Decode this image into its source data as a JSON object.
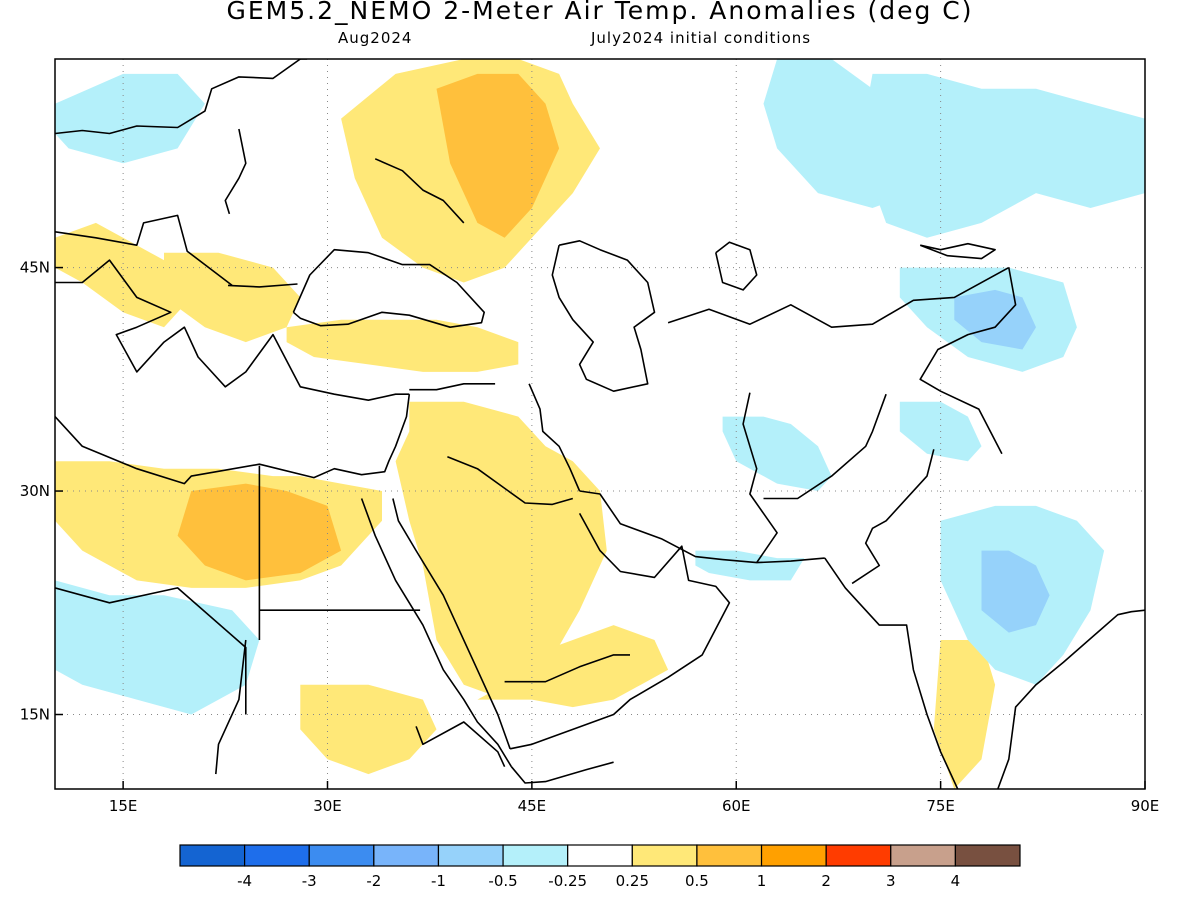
{
  "title": "GEM5.2_NEMO 2-Meter Air Temp. Anomalies (deg C)",
  "subtitle_left": "Aug2024",
  "subtitle_right": "July2024 initial conditions",
  "map": {
    "lon_range": [
      10,
      90
    ],
    "lat_range": [
      10,
      59
    ],
    "lat_ticks": [
      {
        "value": 45,
        "label": "45N"
      },
      {
        "value": 30,
        "label": "30N"
      },
      {
        "value": 15,
        "label": "15N"
      }
    ],
    "lon_ticks": [
      {
        "value": 15,
        "label": "15E"
      },
      {
        "value": 30,
        "label": "30E"
      },
      {
        "value": 45,
        "label": "45E"
      },
      {
        "value": 60,
        "label": "60E"
      },
      {
        "value": 75,
        "label": "75E"
      },
      {
        "value": 90,
        "label": "90E"
      }
    ]
  },
  "colorbar": {
    "colors": [
      "#1464d2",
      "#1e6eeb",
      "#3c8cf0",
      "#78b4fa",
      "#96d2fa",
      "#b4f0fa",
      "#ffffff",
      "#ffe878",
      "#ffc03c",
      "#ffa000",
      "#ff3c00",
      "#c8a08c",
      "#785040"
    ],
    "labels": [
      "-4",
      "-3",
      "-2",
      "-1",
      "-0.5",
      "-0.25",
      "0.25",
      "0.5",
      "1",
      "2",
      "3",
      "4"
    ]
  },
  "anomaly_regions": [
    {
      "category": 7,
      "lon": [
        10,
        13,
        15,
        17,
        19,
        20,
        18,
        15,
        12,
        10
      ],
      "lat": [
        47,
        48,
        47,
        46,
        45,
        43,
        41,
        42,
        44,
        45
      ]
    },
    {
      "category": 7,
      "lon": [
        18,
        22,
        26,
        28,
        27,
        24,
        21,
        18
      ],
      "lat": [
        46,
        46,
        45,
        43,
        41,
        40,
        41,
        43
      ]
    },
    {
      "category": 7,
      "lon": [
        31,
        35,
        40,
        44,
        47,
        48,
        50,
        48,
        45,
        43,
        40,
        37,
        34,
        32
      ],
      "lat": [
        55,
        58,
        59,
        59,
        58,
        56,
        53,
        50,
        47,
        45,
        44,
        45,
        47,
        51
      ]
    },
    {
      "category": 8,
      "lon": [
        38,
        41,
        44,
        46,
        47,
        45,
        43,
        41,
        39
      ],
      "lat": [
        57,
        58,
        58,
        56,
        53,
        49,
        47,
        48,
        52
      ]
    },
    {
      "category": 7,
      "lon": [
        27,
        31,
        35,
        38,
        41,
        44,
        44,
        41,
        37,
        33,
        29,
        27
      ],
      "lat": [
        41,
        41.5,
        41.5,
        41.5,
        41,
        40,
        38.5,
        38,
        38,
        38.5,
        39,
        40
      ]
    },
    {
      "category": 7,
      "lon": [
        36,
        40,
        44,
        46,
        48,
        50,
        50.5,
        48.5,
        46,
        43,
        40,
        38,
        37,
        36,
        35,
        36
      ],
      "lat": [
        36,
        36,
        35,
        33,
        32,
        30,
        26,
        22,
        18,
        16,
        17,
        20,
        25,
        28,
        32,
        34
      ]
    },
    {
      "category": 7,
      "lon": [
        41,
        45,
        48,
        51,
        53,
        55,
        54,
        51,
        48,
        45,
        43,
        41
      ],
      "lat": [
        16,
        16,
        15.5,
        16,
        17,
        18,
        20,
        21,
        20,
        19,
        17,
        16
      ]
    },
    {
      "category": 7,
      "lon": [
        10,
        14,
        18,
        22,
        26,
        28,
        31,
        34,
        34,
        31,
        28,
        24,
        20,
        16,
        12,
        10
      ],
      "lat": [
        32,
        32,
        31.5,
        31.5,
        31,
        31,
        30.5,
        30,
        28,
        25,
        24,
        23.5,
        23.5,
        24,
        26,
        28
      ]
    },
    {
      "category": 8,
      "lon": [
        20,
        24,
        27,
        30,
        31,
        28,
        24,
        21,
        19
      ],
      "lat": [
        30,
        30.5,
        30,
        29,
        26,
        24.5,
        24,
        25,
        27
      ]
    },
    {
      "category": 7,
      "lon": [
        28,
        33,
        37,
        38,
        36,
        33,
        30,
        28
      ],
      "lat": [
        17,
        17,
        16,
        14,
        12,
        11,
        12,
        14
      ]
    },
    {
      "category": 7,
      "lon": [
        75,
        78,
        79,
        78,
        76,
        74.5
      ],
      "lat": [
        20,
        20,
        17,
        12,
        10,
        14
      ]
    },
    {
      "category": 5,
      "lon": [
        63,
        67,
        70,
        73,
        75,
        73,
        70,
        66,
        63,
        62
      ],
      "lat": [
        59,
        59,
        57,
        55,
        53,
        50,
        49,
        50,
        53,
        56
      ]
    },
    {
      "category": 5,
      "lon": [
        70,
        74,
        78,
        82,
        86,
        90,
        90,
        86,
        82,
        78,
        74,
        71,
        69
      ],
      "lat": [
        58,
        58,
        57,
        57,
        56,
        55,
        50,
        49,
        50,
        48,
        47,
        48,
        53
      ]
    },
    {
      "category": 5,
      "lon": [
        72,
        76,
        80,
        84,
        85,
        84,
        81,
        77,
        74,
        72
      ],
      "lat": [
        45,
        45,
        45,
        44,
        41,
        39,
        38,
        39,
        41,
        43
      ]
    },
    {
      "category": 4,
      "lon": [
        76,
        79,
        81,
        82,
        81,
        78,
        76
      ],
      "lat": [
        43,
        43.5,
        43,
        41,
        39.5,
        40,
        41.5
      ]
    },
    {
      "category": 5,
      "lon": [
        72,
        75,
        77,
        78,
        77,
        74,
        72
      ],
      "lat": [
        36,
        36,
        35,
        33,
        32,
        32.5,
        34
      ]
    },
    {
      "category": 5,
      "lon": [
        75,
        79,
        82,
        85,
        87,
        86,
        84,
        82,
        79,
        77,
        75
      ],
      "lat": [
        28,
        29,
        29,
        28,
        26,
        22,
        19,
        17,
        18,
        20,
        24
      ]
    },
    {
      "category": 4,
      "lon": [
        78,
        80,
        82,
        83,
        82,
        80,
        78
      ],
      "lat": [
        26,
        26,
        25,
        23,
        21,
        20.5,
        22
      ]
    },
    {
      "category": 5,
      "lon": [
        10,
        14,
        18,
        23,
        25,
        24,
        20,
        16,
        12,
        10
      ],
      "lat": [
        24,
        23,
        23,
        22,
        20,
        17,
        15,
        16,
        17,
        18
      ]
    },
    {
      "category": 5,
      "lon": [
        10,
        15,
        19,
        21,
        19,
        15,
        11,
        10
      ],
      "lat": [
        56,
        58,
        58,
        56,
        53,
        52,
        53,
        54
      ]
    },
    {
      "category": 5,
      "lon": [
        57,
        60,
        63,
        65,
        64,
        61,
        58,
        57
      ],
      "lat": [
        26,
        26,
        25.5,
        25.5,
        24,
        24,
        24.5,
        25
      ]
    },
    {
      "category": 5,
      "lon": [
        59,
        62,
        64,
        66,
        67,
        66,
        63,
        60,
        59
      ],
      "lat": [
        35,
        35,
        34.5,
        33,
        31,
        30,
        30.5,
        32,
        34
      ]
    }
  ]
}
